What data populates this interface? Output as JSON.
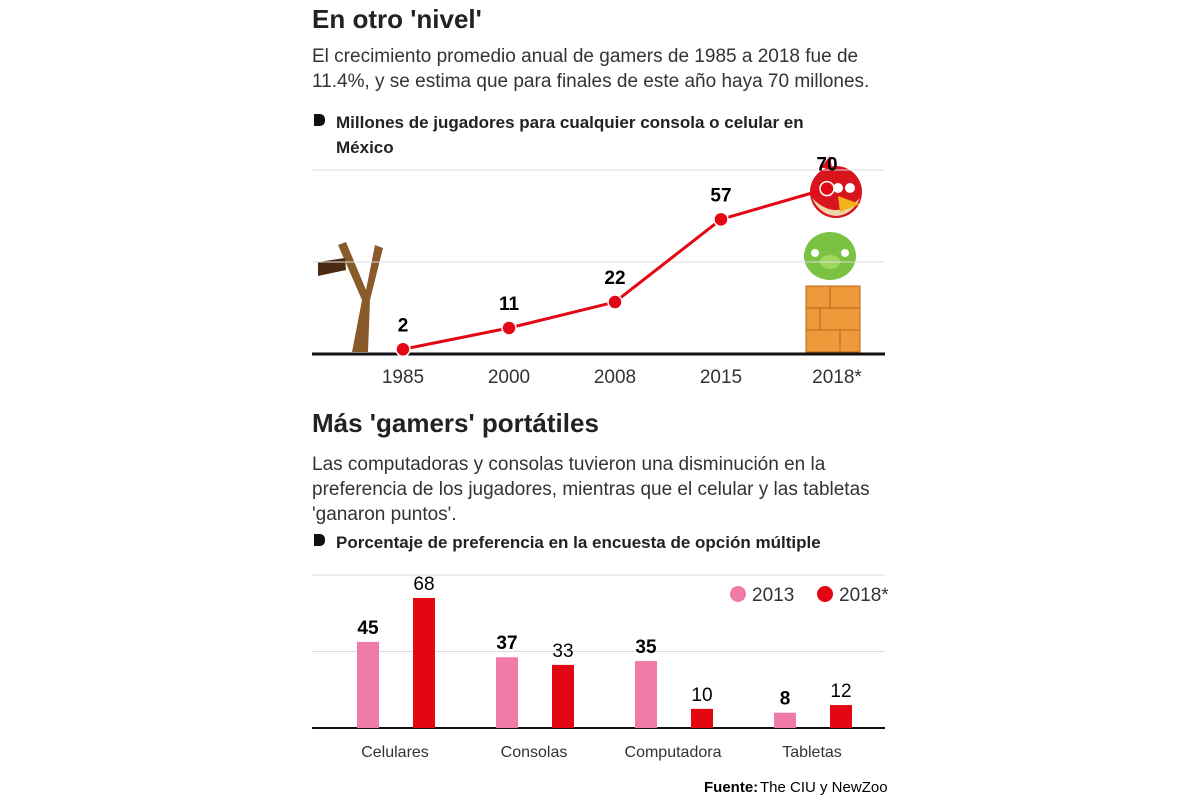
{
  "chart_data": [
    {
      "type": "line",
      "title": "En otro 'nivel'",
      "subtitle": "El crecimiento promedio anual de gamers de 1985 a 2018 fue de 11.4%, y se estima que para finales de este año haya 70 millones.",
      "caption": "Millones de jugadores para cualquier consola o celular en México",
      "categories": [
        "1985",
        "2000",
        "2008",
        "2015",
        "2018*"
      ],
      "values": [
        2,
        11,
        22,
        57,
        70
      ],
      "color": "#e30613",
      "ylim": [
        0,
        80
      ],
      "grid": true
    },
    {
      "type": "bar",
      "title": "Más 'gamers' portátiles",
      "subtitle": "Las computadoras y consolas tuvieron una disminución en la preferencia de los jugadores, mientras que el celular y las tabletas 'ganaron puntos'.",
      "caption": "Porcentaje de preferencia en la encuesta de opción múltiple",
      "categories": [
        "Celulares",
        "Consolas",
        "Computadora",
        "Tabletas"
      ],
      "series": [
        {
          "name": "2013",
          "color": "#f07aa8",
          "values": [
            45,
            37,
            35,
            8
          ]
        },
        {
          "name": "2018*",
          "color": "#e30613",
          "values": [
            68,
            33,
            10,
            12
          ]
        }
      ],
      "ylim": [
        0,
        80
      ],
      "grid": true,
      "legend": "top-right"
    }
  ],
  "source": {
    "label": "Fuente:",
    "text": "The CIU y NewZoo"
  }
}
